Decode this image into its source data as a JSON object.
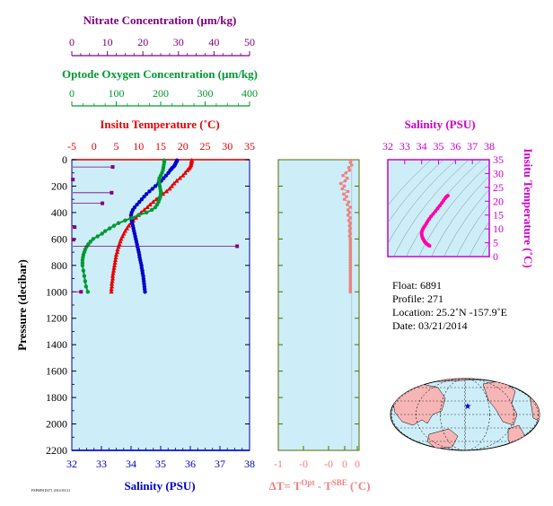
{
  "colors": {
    "nitrate": "#800080",
    "oxygen": "#009933",
    "temperature": "#e60000",
    "salinity": "#0000cc",
    "dt": "#f08080",
    "ts": "#ff00aa",
    "ts_axis": "#cc00cc",
    "panel_bg": "#cdeef8",
    "land": "#f7b6b6"
  },
  "axes": {
    "nitrate": {
      "title": "Nitrate Concentration (µm/kg)",
      "ticks": [
        "0",
        "10",
        "20",
        "30",
        "40",
        "50"
      ]
    },
    "oxygen": {
      "title": "Optode Oxygen Concentration (µm/kg)",
      "ticks": [
        "0",
        "100",
        "200",
        "300",
        "400"
      ]
    },
    "temperature": {
      "title": "Insitu Temperature (˚C)",
      "ticks": [
        "-5",
        "0",
        "5",
        "10",
        "15",
        "20",
        "25",
        "30",
        "35"
      ]
    },
    "salinity_bottom": {
      "title": "Salinity (PSU)",
      "ticks": [
        "32",
        "33",
        "34",
        "35",
        "36",
        "37",
        "38"
      ]
    },
    "pressure": {
      "title": "Pressure (decibar)",
      "ticks": [
        "0",
        "200",
        "400",
        "600",
        "800",
        "1000",
        "1200",
        "1400",
        "1600",
        "1800",
        "2000",
        "2200"
      ]
    },
    "dt": {
      "title_main": "ΔT= T",
      "title_sup1": "Opt",
      "title_mid": " - T",
      "title_sup2": "SBE",
      "title_end": " (˚C)",
      "ticks": [
        "-1",
        "-0",
        "-0",
        "0",
        "0"
      ]
    },
    "ts_salinity": {
      "title": "Salinity (PSU)",
      "ticks": [
        "32",
        "33",
        "34",
        "35",
        "36",
        "37",
        "38"
      ]
    },
    "ts_temperature": {
      "title": "Insitu Temperature (˚C)",
      "ticks": [
        "0",
        "5",
        "10",
        "15",
        "20",
        "25",
        "30",
        "35"
      ]
    }
  },
  "info": {
    "float": "Float:  6891",
    "profile": "Profile:  271",
    "location": "Location:  25.2˚N  -157.9˚E",
    "date": "Date:  03/21/2014"
  },
  "footer_stamp": "FSP6891D271 2014-03-21",
  "chart_data": [
    {
      "type": "line",
      "title": "",
      "ylabel": "Pressure (decibar)",
      "ylim": [
        2200,
        0
      ],
      "series": [
        {
          "name": "Insitu Temperature (˚C)",
          "xlim": [
            -5,
            35
          ],
          "p": [
            5,
            10,
            20,
            30,
            40,
            50,
            60,
            70,
            80,
            100,
            120,
            140,
            160,
            180,
            200,
            220,
            240,
            260,
            280,
            300,
            320,
            340,
            360,
            380,
            400,
            420,
            440,
            460,
            480,
            500,
            520,
            540,
            560,
            580,
            600,
            620,
            640,
            660,
            680,
            700,
            720,
            740,
            760,
            780,
            800,
            820,
            840,
            860,
            880,
            900,
            920,
            940,
            960,
            980,
            1000
          ],
          "values": [
            22.0,
            22.0,
            21.9,
            21.9,
            21.8,
            21.7,
            21.5,
            21.3,
            21.0,
            20.5,
            20.0,
            19.3,
            18.6,
            18.0,
            17.5,
            17.0,
            16.3,
            15.5,
            14.8,
            14.0,
            13.3,
            12.6,
            12.0,
            11.3,
            10.6,
            10.0,
            9.4,
            8.8,
            8.3,
            7.8,
            7.4,
            7.0,
            6.7,
            6.4,
            6.1,
            5.9,
            5.7,
            5.5,
            5.3,
            5.2,
            5.0,
            4.9,
            4.8,
            4.7,
            4.6,
            4.5,
            4.4,
            4.3,
            4.2,
            4.2,
            4.1,
            4.0,
            4.0,
            3.9,
            3.9
          ]
        },
        {
          "name": "Salinity (PSU)",
          "xlim": [
            32,
            38
          ],
          "p": [
            5,
            10,
            20,
            30,
            40,
            50,
            60,
            70,
            80,
            100,
            120,
            140,
            160,
            180,
            200,
            220,
            240,
            260,
            280,
            300,
            320,
            340,
            360,
            380,
            400,
            420,
            440,
            460,
            480,
            500,
            520,
            540,
            560,
            580,
            600,
            620,
            640,
            660,
            680,
            700,
            720,
            740,
            760,
            780,
            800,
            820,
            840,
            860,
            880,
            900,
            920,
            940,
            960,
            980,
            1000
          ],
          "values": [
            35.55,
            35.55,
            35.52,
            35.5,
            35.48,
            35.45,
            35.4,
            35.36,
            35.32,
            35.26,
            35.18,
            35.1,
            35.02,
            34.92,
            34.82,
            34.72,
            34.62,
            34.52,
            34.44,
            34.36,
            34.28,
            34.2,
            34.12,
            34.06,
            34.02,
            34.0,
            34.0,
            34.02,
            34.04,
            34.06,
            34.08,
            34.1,
            34.12,
            34.14,
            34.16,
            34.18,
            34.2,
            34.22,
            34.24,
            34.26,
            34.28,
            34.29,
            34.31,
            34.33,
            34.35,
            34.36,
            34.38,
            34.39,
            34.41,
            34.42,
            34.43,
            34.44,
            34.45,
            34.46,
            34.47
          ]
        },
        {
          "name": "Optode Oxygen Concentration (µm/kg)",
          "xlim": [
            0,
            400
          ],
          "p": [
            5,
            20,
            40,
            60,
            80,
            100,
            120,
            140,
            160,
            180,
            200,
            220,
            240,
            260,
            280,
            300,
            320,
            340,
            360,
            380,
            400,
            420,
            440,
            460,
            480,
            500,
            520,
            540,
            560,
            580,
            600,
            620,
            640,
            660,
            680,
            700,
            720,
            740,
            760,
            780,
            800,
            840,
            880,
            920,
            960,
            1000
          ],
          "values": [
            208,
            208,
            207,
            206,
            205,
            203,
            200,
            197,
            196,
            197,
            198,
            199,
            200,
            200,
            199,
            197,
            195,
            192,
            188,
            180,
            168,
            150,
            135,
            120,
            105,
            95,
            85,
            75,
            68,
            58,
            48,
            42,
            37,
            33,
            30,
            28,
            26,
            25,
            24,
            24,
            24,
            26,
            28,
            30,
            32,
            36
          ]
        },
        {
          "name": "Nitrate Concentration (µm/kg)",
          "xlim": [
            0,
            50
          ],
          "p": [
            55,
            150,
            250,
            330,
            510,
            605,
            655,
            1000
          ],
          "values": [
            11.5,
            0.3,
            11.2,
            8.6,
            0.8,
            0.5,
            46.5,
            2.6
          ]
        }
      ]
    },
    {
      "type": "scatter",
      "title": "",
      "xlabel": "ΔT= TOpt - TSBE (˚C)",
      "xlim": [
        -1,
        0.1
      ],
      "ylim": [
        2200,
        0
      ],
      "series": [
        {
          "name": "ΔT",
          "p": [
            5,
            20,
            40,
            60,
            80,
            100,
            120,
            140,
            160,
            180,
            200,
            220,
            240,
            260,
            280,
            300,
            320,
            340,
            360,
            380,
            400,
            420,
            440,
            460,
            480,
            500,
            520,
            540,
            560,
            580,
            600,
            620,
            640,
            660,
            680,
            700,
            720,
            740,
            760,
            780,
            800,
            820,
            840,
            860,
            880,
            900,
            920,
            940,
            960,
            980,
            1000
          ],
          "values": [
            -0.01,
            -0.02,
            0.0,
            -0.04,
            -0.03,
            -0.08,
            -0.12,
            -0.06,
            -0.09,
            -0.15,
            -0.1,
            -0.13,
            -0.05,
            -0.11,
            -0.07,
            -0.1,
            -0.04,
            -0.06,
            -0.02,
            -0.05,
            -0.03,
            -0.05,
            -0.02,
            -0.04,
            -0.02,
            -0.03,
            -0.02,
            -0.03,
            -0.02,
            -0.03,
            -0.02,
            -0.02,
            -0.02,
            -0.02,
            -0.02,
            -0.02,
            -0.02,
            -0.02,
            -0.02,
            -0.02,
            -0.02,
            -0.02,
            -0.02,
            -0.02,
            -0.02,
            -0.02,
            -0.02,
            -0.02,
            -0.02,
            -0.02,
            -0.02
          ]
        }
      ]
    },
    {
      "type": "line",
      "title": "",
      "xlabel": "Salinity (PSU)",
      "ylabel": "Insitu Temperature (˚C)",
      "xlim": [
        32,
        38
      ],
      "ylim": [
        0,
        35
      ],
      "series": [
        {
          "name": "T-S",
          "x": [
            35.55,
            35.5,
            35.45,
            35.38,
            35.3,
            35.2,
            35.08,
            34.95,
            34.82,
            34.68,
            34.55,
            34.45,
            34.36,
            34.28,
            34.2,
            34.12,
            34.06,
            34.02,
            34.0,
            34.01,
            34.03,
            34.06,
            34.1,
            34.14,
            34.18,
            34.22,
            34.27,
            34.32,
            34.37,
            34.42,
            34.47
          ],
          "y": [
            22.0,
            21.8,
            21.5,
            21.0,
            20.3,
            19.4,
            18.4,
            17.4,
            16.4,
            15.4,
            14.5,
            13.6,
            12.8,
            12.0,
            11.2,
            10.5,
            9.8,
            9.1,
            8.4,
            7.8,
            7.2,
            6.7,
            6.2,
            5.8,
            5.4,
            5.1,
            4.8,
            4.5,
            4.3,
            4.1,
            3.9
          ]
        }
      ]
    }
  ]
}
